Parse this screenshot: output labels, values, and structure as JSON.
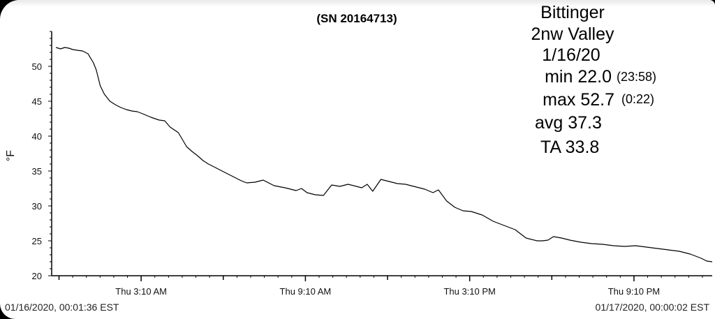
{
  "chart_data": {
    "type": "line",
    "title": "(SN 20164713)",
    "ylabel": "°F",
    "xlabel": "",
    "ylim": [
      20,
      55
    ],
    "y_ticks": [
      20,
      25,
      30,
      35,
      40,
      45,
      50
    ],
    "x_tick_labels": [
      "Thu 3:10 AM",
      "Thu 9:10 AM",
      "Thu 3:10 PM",
      "Thu 9:10 PM"
    ],
    "x_tick_hours": [
      3.142,
      9.142,
      15.142,
      21.142
    ],
    "x_unit": "hours since 01/16/2020 00:00 EST",
    "xlim": [
      0.027,
      24.0
    ],
    "grid": false,
    "range_start": "01/16/2020, 00:01:36 EST",
    "range_end": "01/17/2020, 00:00:02 EST",
    "annotations": [
      {
        "text": "Bittinger",
        "size": "big"
      },
      {
        "text": "2nw Valley",
        "size": "big"
      },
      {
        "text": "1/16/20",
        "size": "big"
      },
      {
        "text": "min 22.0",
        "size": "big",
        "note": "(23:58)"
      },
      {
        "text": "max 52.7",
        "size": "big",
        "note": "(0:22)"
      },
      {
        "text": "avg 37.3",
        "size": "big"
      },
      {
        "text": "TA 33.8",
        "size": "big"
      }
    ],
    "series": [
      {
        "color": "#000000",
        "x": [
          0.03,
          0.2,
          0.35,
          0.5,
          0.65,
          0.8,
          1.0,
          1.2,
          1.4,
          1.5,
          1.65,
          1.8,
          2.0,
          2.2,
          2.4,
          2.6,
          2.8,
          3.0,
          3.2,
          3.5,
          3.8,
          4.0,
          4.2,
          4.5,
          4.8,
          5.0,
          5.2,
          5.4,
          5.6,
          5.8,
          6.0,
          6.2,
          6.4,
          6.6,
          6.8,
          7.0,
          7.3,
          7.6,
          8.0,
          8.4,
          8.8,
          9.0,
          9.2,
          9.5,
          9.8,
          10.1,
          10.4,
          10.7,
          11.0,
          11.2,
          11.4,
          11.6,
          11.9,
          12.2,
          12.5,
          12.8,
          13.2,
          13.5,
          13.8,
          14.0,
          14.3,
          14.6,
          14.9,
          15.2,
          15.6,
          16.0,
          16.4,
          16.8,
          17.2,
          17.6,
          17.8,
          18.0,
          18.2,
          18.5,
          18.8,
          19.2,
          19.6,
          20.0,
          20.4,
          20.8,
          21.2,
          21.6,
          22.0,
          22.4,
          22.8,
          23.2,
          23.6,
          23.8,
          24.0
        ],
        "values": [
          52.7,
          52.5,
          52.7,
          52.6,
          52.4,
          52.3,
          52.2,
          51.8,
          50.5,
          49.5,
          47.2,
          46.0,
          45.0,
          44.5,
          44.1,
          43.8,
          43.6,
          43.5,
          43.2,
          42.7,
          42.3,
          42.2,
          41.3,
          40.5,
          38.5,
          37.8,
          37.2,
          36.5,
          36.0,
          35.6,
          35.2,
          34.8,
          34.4,
          34.0,
          33.6,
          33.3,
          33.4,
          33.7,
          32.9,
          32.6,
          32.2,
          32.5,
          31.9,
          31.6,
          31.5,
          33.0,
          32.8,
          33.1,
          32.8,
          32.6,
          33.1,
          32.1,
          33.8,
          33.5,
          33.2,
          33.1,
          32.7,
          32.4,
          31.9,
          32.3,
          30.7,
          29.8,
          29.3,
          29.2,
          28.7,
          27.8,
          27.2,
          26.6,
          25.4,
          25.0,
          25.0,
          25.1,
          25.6,
          25.4,
          25.1,
          24.8,
          24.6,
          24.5,
          24.3,
          24.2,
          24.3,
          24.1,
          23.9,
          23.7,
          23.5,
          23.1,
          22.5,
          22.1,
          22.0
        ]
      }
    ]
  }
}
